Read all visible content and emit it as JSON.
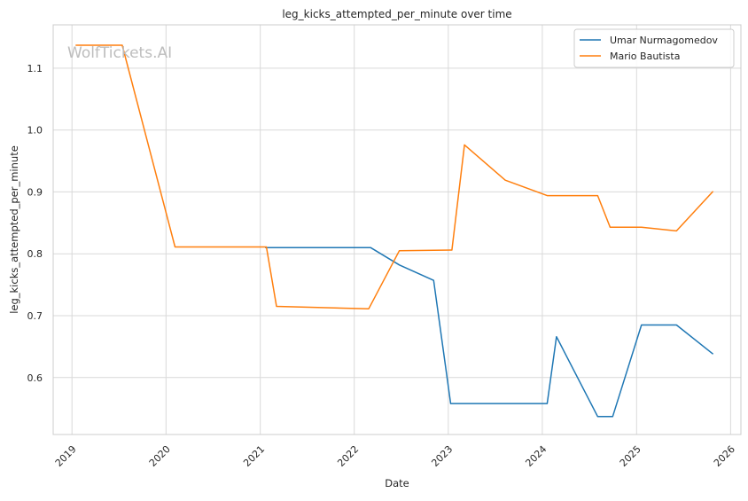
{
  "chart_data": {
    "type": "line",
    "title": "leg_kicks_attempted_per_minute over time",
    "xlabel": "Date",
    "ylabel": "leg_kicks_attempted_per_minute",
    "watermark": "WolfTickets.AI",
    "legend_position": "top-right",
    "grid": true,
    "x_type": "date",
    "xlim": [
      "2018-10-20",
      "2026-02-10"
    ],
    "ylim": [
      0.508,
      1.17
    ],
    "x_ticks": [
      "2019-01-01",
      "2020-01-01",
      "2021-01-01",
      "2022-01-01",
      "2023-01-01",
      "2024-01-01",
      "2025-01-01",
      "2026-01-01"
    ],
    "x_tick_labels": [
      "2019",
      "2020",
      "2021",
      "2022",
      "2023",
      "2024",
      "2025",
      "2026"
    ],
    "y_ticks": [
      0.6,
      0.7,
      0.8,
      0.9,
      1.0,
      1.1
    ],
    "y_tick_labels": [
      "0.6",
      "0.7",
      "0.8",
      "0.9",
      "1.0",
      "1.1"
    ],
    "series": [
      {
        "name": "Umar Nurmagomedov",
        "color": "#1f77b4",
        "points": [
          {
            "x": "2021-01-20",
            "y": 0.81
          },
          {
            "x": "2022-03-05",
            "y": 0.81
          },
          {
            "x": "2022-06-25",
            "y": 0.782
          },
          {
            "x": "2022-11-05",
            "y": 0.757
          },
          {
            "x": "2023-01-10",
            "y": 0.558
          },
          {
            "x": "2024-01-20",
            "y": 0.558
          },
          {
            "x": "2024-02-25",
            "y": 0.666
          },
          {
            "x": "2024-08-03",
            "y": 0.537
          },
          {
            "x": "2024-09-30",
            "y": 0.537
          },
          {
            "x": "2025-01-20",
            "y": 0.685
          },
          {
            "x": "2025-06-05",
            "y": 0.685
          },
          {
            "x": "2025-10-25",
            "y": 0.638
          }
        ]
      },
      {
        "name": "Mario Bautista",
        "color": "#ff7f0e",
        "points": [
          {
            "x": "2019-01-15",
            "y": 1.137
          },
          {
            "x": "2019-07-15",
            "y": 1.137
          },
          {
            "x": "2020-02-05",
            "y": 0.811
          },
          {
            "x": "2021-01-25",
            "y": 0.811
          },
          {
            "x": "2021-03-05",
            "y": 0.715
          },
          {
            "x": "2022-02-26",
            "y": 0.711
          },
          {
            "x": "2022-06-25",
            "y": 0.805
          },
          {
            "x": "2023-01-15",
            "y": 0.806
          },
          {
            "x": "2023-03-05",
            "y": 0.976
          },
          {
            "x": "2023-08-10",
            "y": 0.919
          },
          {
            "x": "2024-01-20",
            "y": 0.894
          },
          {
            "x": "2024-08-03",
            "y": 0.894
          },
          {
            "x": "2024-09-20",
            "y": 0.843
          },
          {
            "x": "2025-01-20",
            "y": 0.843
          },
          {
            "x": "2025-06-05",
            "y": 0.837
          },
          {
            "x": "2025-10-25",
            "y": 0.901
          }
        ]
      }
    ]
  }
}
